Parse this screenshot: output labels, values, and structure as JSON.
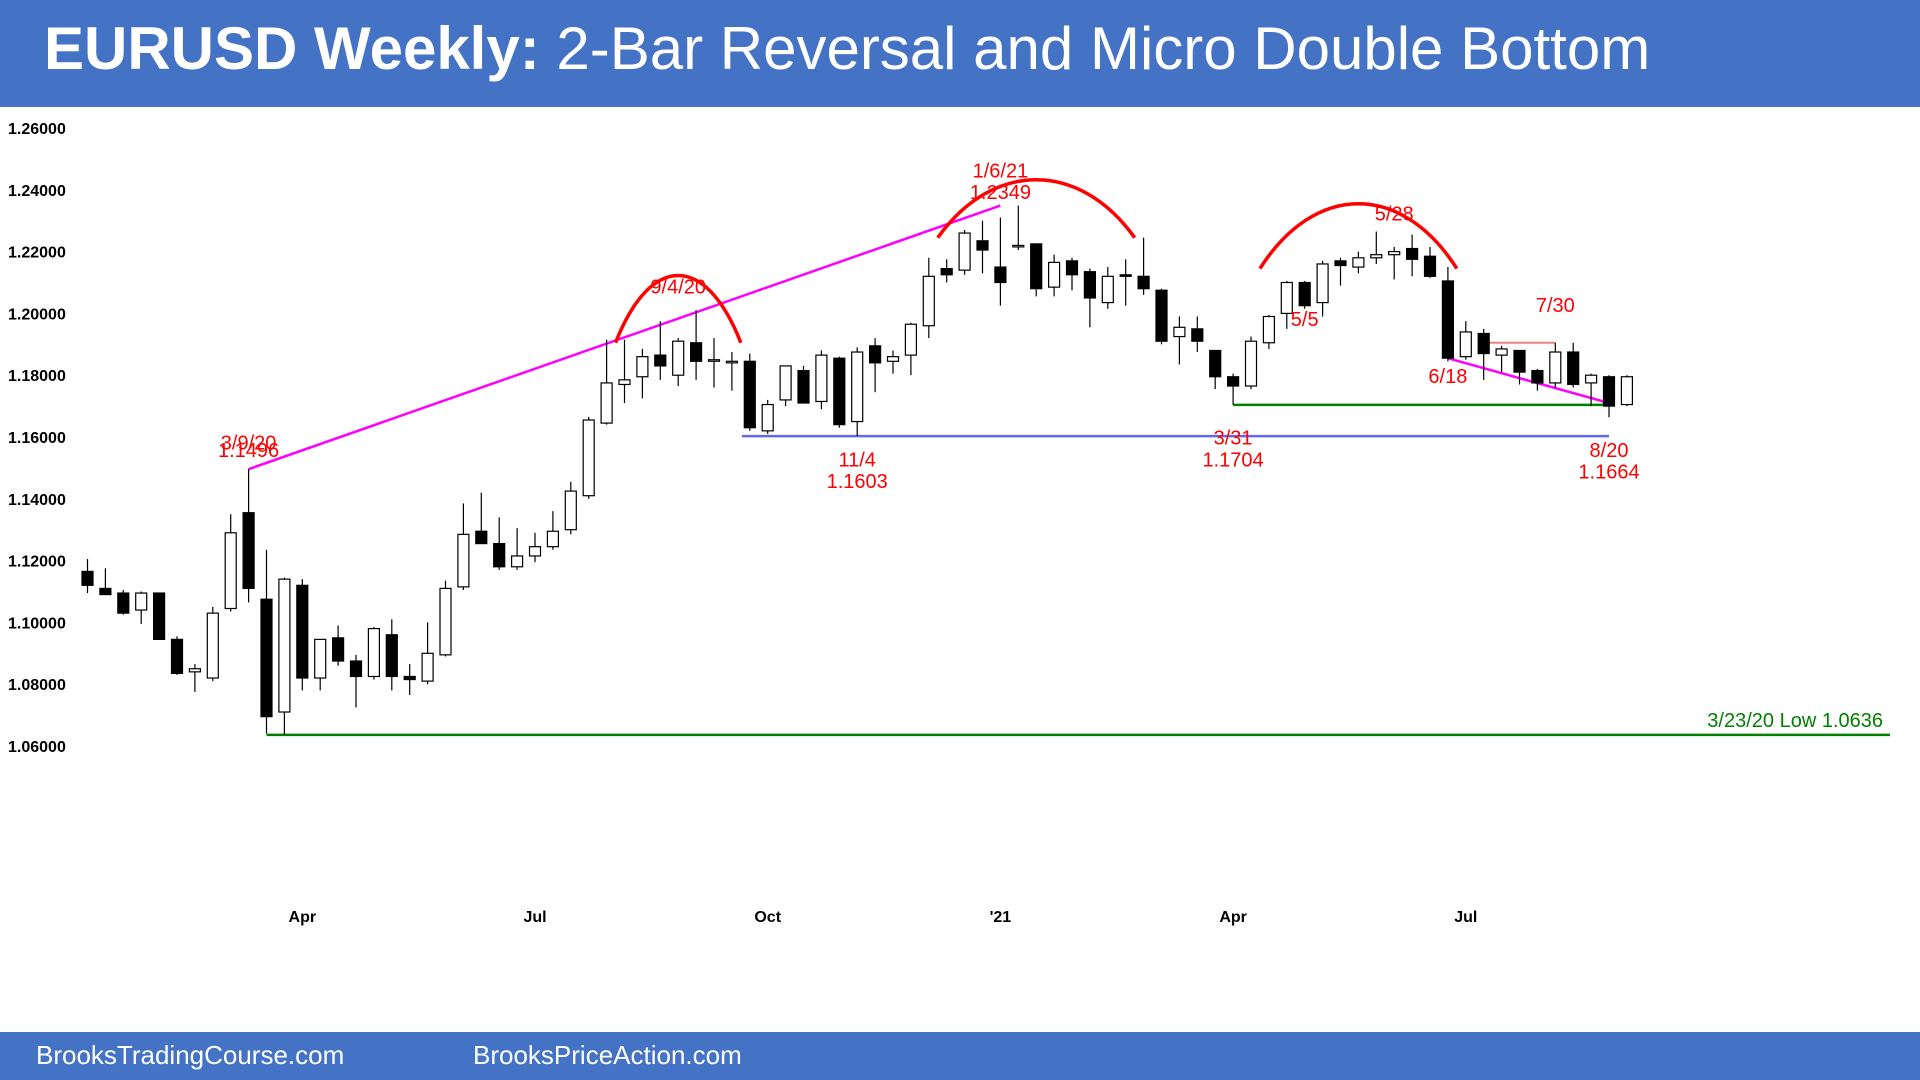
{
  "header": {
    "title_bold": "EURUSD Weekly:",
    "title_rest": " 2-Bar Reversal and Micro Double Bottom",
    "background": "#4472c4"
  },
  "footer": {
    "link1": "BrooksTradingCourse.com",
    "link2": "BrooksPriceAction.com"
  },
  "colors": {
    "bull_fill": "#ffffff",
    "bear_fill": "#000000",
    "annotation": "#ff0000",
    "trendline": "#ff00ff",
    "support_green": "#008000",
    "support_blue": "#6666ee",
    "resistance_pink": "#f08080"
  },
  "chart_data": {
    "type": "candlestick",
    "ylim": [
      1.05,
      1.265
    ],
    "y_ticks": [
      "1.26000",
      "1.24000",
      "1.22000",
      "1.20000",
      "1.18000",
      "1.16000",
      "1.14000",
      "1.12000",
      "1.10000",
      "1.08000",
      "1.06000"
    ],
    "x_ticks": [
      {
        "label": "Apr",
        "index": 12
      },
      {
        "label": "Jul",
        "index": 25
      },
      {
        "label": "Oct",
        "index": 38
      },
      {
        "label": "'21",
        "index": 51
      },
      {
        "label": "Apr",
        "index": 64
      },
      {
        "label": "Jul",
        "index": 77
      }
    ],
    "candles": [
      {
        "o": 1.1165,
        "h": 1.1205,
        "l": 1.1095,
        "c": 1.112
      },
      {
        "o": 1.111,
        "h": 1.1175,
        "l": 1.109,
        "c": 1.109
      },
      {
        "o": 1.1095,
        "h": 1.1105,
        "l": 1.1025,
        "c": 1.103
      },
      {
        "o": 1.104,
        "h": 1.11,
        "l": 1.0995,
        "c": 1.1095
      },
      {
        "o": 1.1095,
        "h": 1.1095,
        "l": 1.0945,
        "c": 1.0945
      },
      {
        "o": 1.0945,
        "h": 1.0955,
        "l": 1.083,
        "c": 1.0835
      },
      {
        "o": 1.084,
        "h": 1.0865,
        "l": 1.0775,
        "c": 1.085
      },
      {
        "o": 1.082,
        "h": 1.105,
        "l": 1.081,
        "c": 1.103
      },
      {
        "o": 1.1045,
        "h": 1.135,
        "l": 1.1035,
        "c": 1.129
      },
      {
        "o": 1.1355,
        "h": 1.1496,
        "l": 1.1065,
        "c": 1.111
      },
      {
        "o": 1.1075,
        "h": 1.1235,
        "l": 1.064,
        "c": 1.0695
      },
      {
        "o": 1.071,
        "h": 1.1145,
        "l": 1.0636,
        "c": 1.114
      },
      {
        "o": 1.112,
        "h": 1.114,
        "l": 1.078,
        "c": 1.082
      },
      {
        "o": 1.082,
        "h": 1.0945,
        "l": 1.078,
        "c": 1.0945
      },
      {
        "o": 1.095,
        "h": 1.099,
        "l": 1.086,
        "c": 1.0875
      },
      {
        "o": 1.0875,
        "h": 1.0895,
        "l": 1.0725,
        "c": 1.0825
      },
      {
        "o": 1.0825,
        "h": 1.0985,
        "l": 1.0815,
        "c": 1.098
      },
      {
        "o": 1.096,
        "h": 1.101,
        "l": 1.078,
        "c": 1.0825
      },
      {
        "o": 1.0825,
        "h": 1.0865,
        "l": 1.0765,
        "c": 1.0815
      },
      {
        "o": 1.081,
        "h": 1.1,
        "l": 1.08,
        "c": 1.09
      },
      {
        "o": 1.0895,
        "h": 1.1135,
        "l": 1.089,
        "c": 1.111
      },
      {
        "o": 1.1115,
        "h": 1.1385,
        "l": 1.1105,
        "c": 1.1285
      },
      {
        "o": 1.1295,
        "h": 1.142,
        "l": 1.1255,
        "c": 1.1255
      },
      {
        "o": 1.1255,
        "h": 1.134,
        "l": 1.117,
        "c": 1.118
      },
      {
        "o": 1.118,
        "h": 1.1305,
        "l": 1.117,
        "c": 1.1215
      },
      {
        "o": 1.1215,
        "h": 1.129,
        "l": 1.1195,
        "c": 1.1245
      },
      {
        "o": 1.1245,
        "h": 1.136,
        "l": 1.1235,
        "c": 1.1295
      },
      {
        "o": 1.13,
        "h": 1.1455,
        "l": 1.1285,
        "c": 1.1425
      },
      {
        "o": 1.141,
        "h": 1.1665,
        "l": 1.14,
        "c": 1.1655
      },
      {
        "o": 1.1645,
        "h": 1.1915,
        "l": 1.164,
        "c": 1.1775
      },
      {
        "o": 1.177,
        "h": 1.1915,
        "l": 1.171,
        "c": 1.1785
      },
      {
        "o": 1.1795,
        "h": 1.1885,
        "l": 1.1725,
        "c": 1.186
      },
      {
        "o": 1.1865,
        "h": 1.1975,
        "l": 1.1785,
        "c": 1.183
      },
      {
        "o": 1.18,
        "h": 1.192,
        "l": 1.1765,
        "c": 1.191
      },
      {
        "o": 1.1905,
        "h": 1.201,
        "l": 1.1785,
        "c": 1.1845
      },
      {
        "o": 1.185,
        "h": 1.192,
        "l": 1.176,
        "c": 1.185
      },
      {
        "o": 1.184,
        "h": 1.1875,
        "l": 1.175,
        "c": 1.1845
      },
      {
        "o": 1.1845,
        "h": 1.187,
        "l": 1.162,
        "c": 1.163
      },
      {
        "o": 1.162,
        "h": 1.172,
        "l": 1.161,
        "c": 1.1705
      },
      {
        "o": 1.172,
        "h": 1.183,
        "l": 1.17,
        "c": 1.183
      },
      {
        "o": 1.1815,
        "h": 1.183,
        "l": 1.171,
        "c": 1.171
      },
      {
        "o": 1.1715,
        "h": 1.188,
        "l": 1.169,
        "c": 1.1865
      },
      {
        "o": 1.1855,
        "h": 1.186,
        "l": 1.163,
        "c": 1.164
      },
      {
        "o": 1.165,
        "h": 1.189,
        "l": 1.1603,
        "c": 1.1875
      },
      {
        "o": 1.1895,
        "h": 1.192,
        "l": 1.1745,
        "c": 1.184
      },
      {
        "o": 1.1845,
        "h": 1.188,
        "l": 1.1805,
        "c": 1.186
      },
      {
        "o": 1.1865,
        "h": 1.197,
        "l": 1.18,
        "c": 1.1965
      },
      {
        "o": 1.196,
        "h": 1.218,
        "l": 1.192,
        "c": 1.212
      },
      {
        "o": 1.2145,
        "h": 1.2175,
        "l": 1.21,
        "c": 1.2125
      },
      {
        "o": 1.214,
        "h": 1.227,
        "l": 1.2125,
        "c": 1.226
      },
      {
        "o": 1.2235,
        "h": 1.23,
        "l": 1.213,
        "c": 1.2205
      },
      {
        "o": 1.215,
        "h": 1.231,
        "l": 1.2025,
        "c": 1.21
      },
      {
        "o": 1.222,
        "h": 1.2349,
        "l": 1.2205,
        "c": 1.222
      },
      {
        "o": 1.2225,
        "h": 1.2225,
        "l": 1.2055,
        "c": 1.208
      },
      {
        "o": 1.2085,
        "h": 1.219,
        "l": 1.2055,
        "c": 1.2165
      },
      {
        "o": 1.217,
        "h": 1.218,
        "l": 1.2075,
        "c": 1.2125
      },
      {
        "o": 1.2135,
        "h": 1.2145,
        "l": 1.1955,
        "c": 1.205
      },
      {
        "o": 1.2035,
        "h": 1.215,
        "l": 1.2015,
        "c": 1.212
      },
      {
        "o": 1.2125,
        "h": 1.2175,
        "l": 1.2025,
        "c": 1.212
      },
      {
        "o": 1.212,
        "h": 1.2245,
        "l": 1.206,
        "c": 1.208
      },
      {
        "o": 1.2075,
        "h": 1.208,
        "l": 1.19,
        "c": 1.191
      },
      {
        "o": 1.1925,
        "h": 1.199,
        "l": 1.1835,
        "c": 1.1955
      },
      {
        "o": 1.195,
        "h": 1.199,
        "l": 1.1875,
        "c": 1.191
      },
      {
        "o": 1.188,
        "h": 1.188,
        "l": 1.1755,
        "c": 1.1795
      },
      {
        "o": 1.1795,
        "h": 1.1805,
        "l": 1.1704,
        "c": 1.1765
      },
      {
        "o": 1.1765,
        "h": 1.1925,
        "l": 1.1755,
        "c": 1.191
      },
      {
        "o": 1.1905,
        "h": 1.1995,
        "l": 1.1885,
        "c": 1.199
      },
      {
        "o": 1.2,
        "h": 1.2105,
        "l": 1.195,
        "c": 1.21
      },
      {
        "o": 1.21,
        "h": 1.2105,
        "l": 1.2015,
        "c": 1.2025
      },
      {
        "o": 1.2035,
        "h": 1.217,
        "l": 1.199,
        "c": 1.216
      },
      {
        "o": 1.217,
        "h": 1.218,
        "l": 1.209,
        "c": 1.2155
      },
      {
        "o": 1.215,
        "h": 1.22,
        "l": 1.213,
        "c": 1.218
      },
      {
        "o": 1.218,
        "h": 1.2265,
        "l": 1.216,
        "c": 1.219
      },
      {
        "o": 1.219,
        "h": 1.2215,
        "l": 1.211,
        "c": 1.22
      },
      {
        "o": 1.221,
        "h": 1.2255,
        "l": 1.212,
        "c": 1.2175
      },
      {
        "o": 1.2185,
        "h": 1.2215,
        "l": 1.2115,
        "c": 1.212
      },
      {
        "o": 1.2105,
        "h": 1.215,
        "l": 1.1845,
        "c": 1.1855
      },
      {
        "o": 1.186,
        "h": 1.1975,
        "l": 1.185,
        "c": 1.194
      },
      {
        "o": 1.1935,
        "h": 1.195,
        "l": 1.1785,
        "c": 1.187
      },
      {
        "o": 1.1865,
        "h": 1.1895,
        "l": 1.181,
        "c": 1.1885
      },
      {
        "o": 1.188,
        "h": 1.188,
        "l": 1.177,
        "c": 1.181
      },
      {
        "o": 1.1815,
        "h": 1.182,
        "l": 1.175,
        "c": 1.1775
      },
      {
        "o": 1.1775,
        "h": 1.1905,
        "l": 1.176,
        "c": 1.1875
      },
      {
        "o": 1.1875,
        "h": 1.1905,
        "l": 1.176,
        "c": 1.177
      },
      {
        "o": 1.1775,
        "h": 1.1805,
        "l": 1.17,
        "c": 1.18
      },
      {
        "o": 1.1795,
        "h": 1.18,
        "l": 1.1664,
        "c": 1.17
      },
      {
        "o": 1.1705,
        "h": 1.18,
        "l": 1.17,
        "c": 1.1795
      }
    ],
    "annotations": [
      {
        "id": "a-39-date",
        "text": "3/9/20",
        "index": 9,
        "y": 1.156
      },
      {
        "id": "a-39-price",
        "text": "1.1496",
        "index": 9,
        "y": 1.1535
      },
      {
        "id": "a-94-date",
        "text": "9/4/20",
        "index": 33,
        "y": 1.2065
      },
      {
        "id": "a-16-date",
        "text": "1/6/21",
        "index": 51,
        "y": 1.244
      },
      {
        "id": "a-16-price",
        "text": "1.2349",
        "index": 51,
        "y": 1.237
      },
      {
        "id": "a-114-date",
        "text": "11/4",
        "index": 43,
        "y": 1.1505
      },
      {
        "id": "a-114-price",
        "text": "1.1603",
        "index": 43,
        "y": 1.1435
      },
      {
        "id": "a-331-date",
        "text": "3/31",
        "index": 64,
        "y": 1.1575
      },
      {
        "id": "a-331-price",
        "text": "1.1704",
        "index": 64,
        "y": 1.1505
      },
      {
        "id": "a-55-date",
        "text": "5/5",
        "index": 68,
        "y": 1.196
      },
      {
        "id": "a-528-date",
        "text": "5/28",
        "index": 73,
        "y": 1.23
      },
      {
        "id": "a-618-date",
        "text": "6/18",
        "index": 76,
        "y": 1.1775
      },
      {
        "id": "a-730-date",
        "text": "7/30",
        "index": 82,
        "y": 1.2005
      },
      {
        "id": "a-820-date",
        "text": "8/20",
        "index": 85,
        "y": 1.1535
      },
      {
        "id": "a-820-price",
        "text": "1.1664",
        "index": 85,
        "y": 1.1465
      }
    ],
    "low_label": "3/23/20 Low 1.0636",
    "lines": {
      "trend_main": {
        "from": {
          "index": 9,
          "y": 1.1496
        },
        "to": {
          "index": 51,
          "y": 1.2349
        }
      },
      "trend_down": {
        "from": {
          "index": 76,
          "y": 1.1855
        },
        "to": {
          "index": 85,
          "y": 1.171
        }
      },
      "low_support": {
        "from": {
          "index": 10,
          "y": 1.0636
        },
        "to": {
          "index": 90,
          "y": 1.0636
        }
      },
      "nov_support": {
        "from": {
          "index": 37,
          "y": 1.1603
        },
        "to": {
          "index": 85,
          "y": 1.1603
        }
      },
      "mar_support": {
        "from": {
          "index": 64,
          "y": 1.1704
        },
        "to": {
          "index": 85,
          "y": 1.1704
        }
      },
      "jul_resistance": {
        "from": {
          "index": 78,
          "y": 1.1905
        },
        "to": {
          "index": 82,
          "y": 1.1905
        }
      }
    },
    "arcs": [
      {
        "id": "arc-sep",
        "from": {
          "index": 29.5,
          "y": 1.1905
        },
        "to": {
          "index": 36.5,
          "y": 1.1905
        },
        "peak": 1.205
      },
      {
        "id": "arc-jan",
        "from": {
          "index": 47.5,
          "y": 1.2245
        },
        "to": {
          "index": 58.5,
          "y": 1.2245
        },
        "peak": 1.237
      },
      {
        "id": "arc-may",
        "from": {
          "index": 65.5,
          "y": 1.2145
        },
        "to": {
          "index": 76.5,
          "y": 1.2145
        },
        "peak": 1.2285
      }
    ]
  }
}
